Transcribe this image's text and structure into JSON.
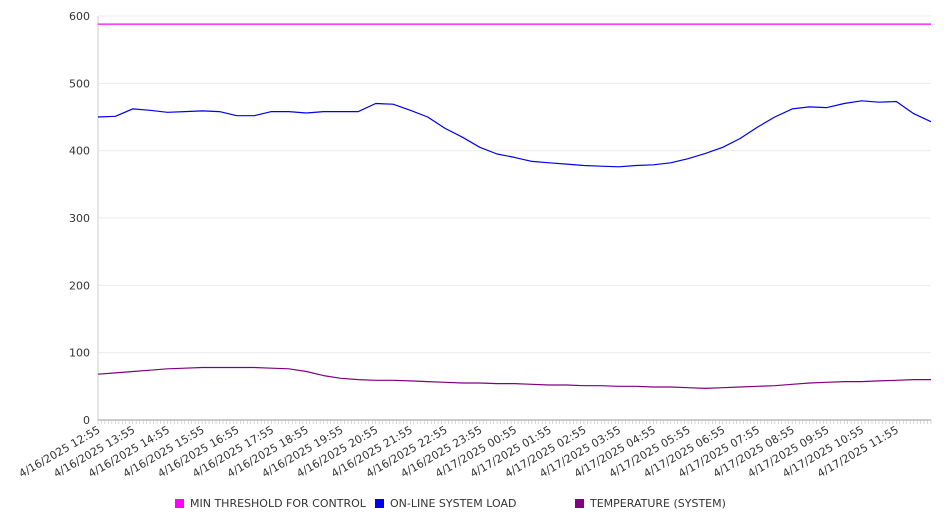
{
  "chart_data": {
    "type": "line",
    "title": "",
    "xlabel": "",
    "ylabel": "",
    "ylim": [
      0,
      600
    ],
    "yticks": [
      0,
      100,
      200,
      300,
      400,
      500,
      600
    ],
    "grid": true,
    "legend_position": "bottom",
    "xtick_labels": [
      "4/16/2025 12:55",
      "4/16/2025 13:55",
      "4/16/2025 14:55",
      "4/16/2025 15:55",
      "4/16/2025 16:55",
      "4/16/2025 17:55",
      "4/16/2025 18:55",
      "4/16/2025 19:55",
      "4/16/2025 20:55",
      "4/16/2025 21:55",
      "4/16/2025 22:55",
      "4/16/2025 23:55",
      "4/17/2025 00:55",
      "4/17/2025 01:55",
      "4/17/2025 02:55",
      "4/17/2025 03:55",
      "4/17/2025 04:55",
      "4/17/2025 05:55",
      "4/17/2025 06:55",
      "4/17/2025 07:55",
      "4/17/2025 08:55",
      "4/17/2025 09:55",
      "4/17/2025 10:55",
      "4/17/2025 11:55"
    ],
    "x_hours": [
      0,
      0.5,
      1,
      1.5,
      2,
      2.5,
      3,
      3.5,
      4,
      4.5,
      5,
      5.5,
      6,
      6.5,
      7,
      7.5,
      8,
      8.5,
      9,
      9.5,
      10,
      10.5,
      11,
      11.5,
      12,
      12.5,
      13,
      13.5,
      14,
      14.5,
      15,
      15.5,
      16,
      16.5,
      17,
      17.5,
      18,
      18.5,
      19,
      19.5,
      20,
      20.5,
      21,
      21.5,
      22,
      22.5,
      23,
      23.5,
      24
    ],
    "series": [
      {
        "name": "MIN THRESHOLD FOR CONTROL",
        "color": "#ff00ff",
        "values": [
          588,
          588,
          588,
          588,
          588,
          588,
          588,
          588,
          588,
          588,
          588,
          588,
          588,
          588,
          588,
          588,
          588,
          588,
          588,
          588,
          588,
          588,
          588,
          588,
          588,
          588,
          588,
          588,
          588,
          588,
          588,
          588,
          588,
          588,
          588,
          588,
          588,
          588,
          588,
          588,
          588,
          588,
          588,
          588,
          588,
          588,
          588,
          588,
          588
        ]
      },
      {
        "name": "ON-LINE SYSTEM LOAD",
        "color": "#0000ee",
        "values": [
          450,
          451,
          462,
          460,
          457,
          458,
          459,
          458,
          452,
          452,
          458,
          458,
          456,
          458,
          458,
          458,
          470,
          469,
          460,
          450,
          433,
          420,
          405,
          395,
          390,
          384,
          382,
          380,
          378,
          377,
          376,
          378,
          379,
          382,
          388,
          396,
          405,
          418,
          435,
          450,
          462,
          465,
          464,
          470,
          474,
          472,
          473,
          455,
          443
        ]
      },
      {
        "name": "TEMPERATURE (SYSTEM)",
        "color": "#800080",
        "values": [
          68,
          70,
          72,
          74,
          76,
          77,
          78,
          78,
          78,
          78,
          77,
          76,
          72,
          66,
          62,
          60,
          59,
          59,
          58,
          57,
          56,
          55,
          55,
          54,
          54,
          53,
          52,
          52,
          51,
          51,
          50,
          50,
          49,
          49,
          48,
          47,
          48,
          49,
          50,
          51,
          53,
          55,
          56,
          57,
          57,
          58,
          59,
          60,
          60
        ]
      }
    ]
  }
}
